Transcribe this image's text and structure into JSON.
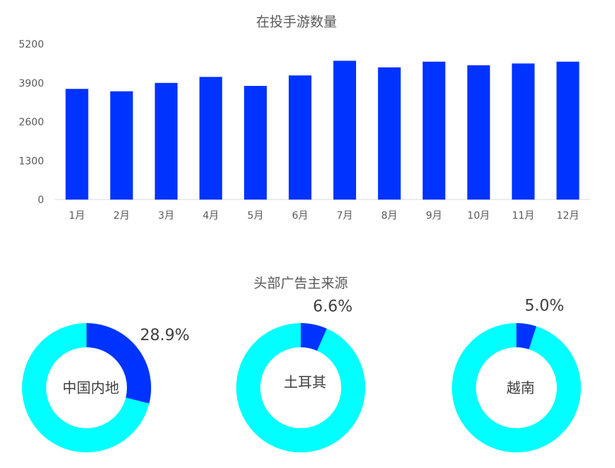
{
  "chart_data": [
    {
      "type": "bar",
      "title": "在投手游数量",
      "categories": [
        "1月",
        "2月",
        "3月",
        "4月",
        "5月",
        "6月",
        "7月",
        "8月",
        "9月",
        "10月",
        "11月",
        "12月"
      ],
      "values": [
        3700,
        3620,
        3900,
        4100,
        3800,
        4150,
        4640,
        4420,
        4610,
        4490,
        4550,
        4610
      ],
      "ylim": [
        0,
        5200
      ],
      "yticks": [
        0,
        1300,
        2600,
        3900,
        5200
      ],
      "grid": false,
      "bar_color": "#0033ff"
    },
    {
      "type": "pie",
      "title": "头部广告主来源",
      "donuts": [
        {
          "label": "中国内地",
          "value": 28.9,
          "value_label": "28.9%"
        },
        {
          "label": "土耳其",
          "value": 6.6,
          "value_label": "6.6%"
        },
        {
          "label": "越南",
          "value": 5.0,
          "value_label": "5.0%"
        }
      ],
      "highlight_color": "#0033ff",
      "rest_color": "#00ffff"
    }
  ]
}
